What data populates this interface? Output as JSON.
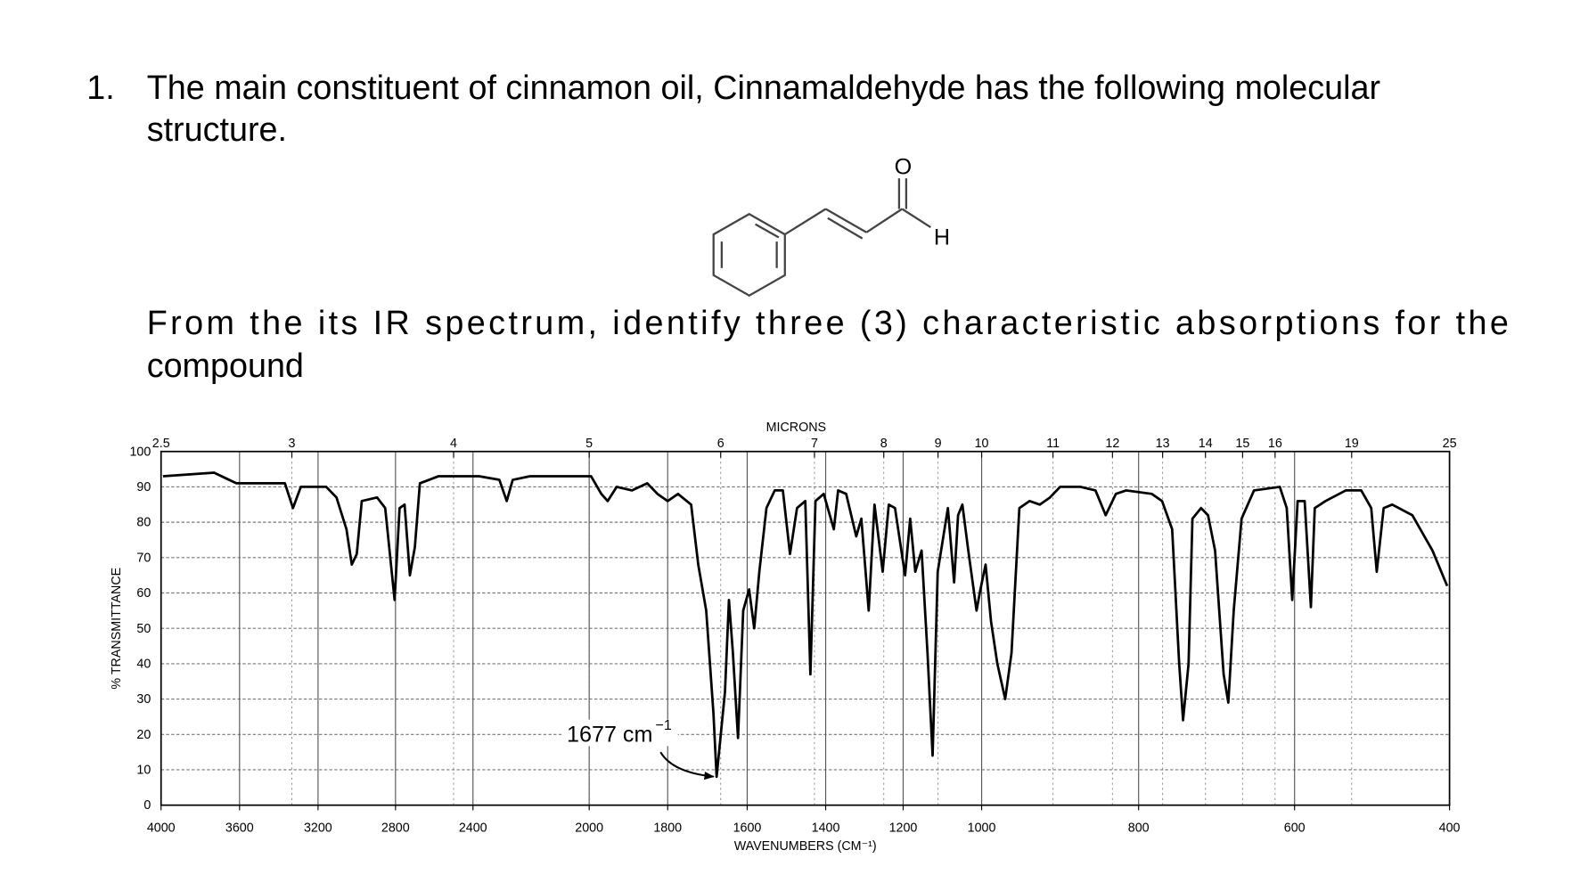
{
  "question": {
    "number": "1.",
    "text": [
      "The main constituent of cinnamon oil, Cinnamaldehyde has the following molecular",
      "structure."
    ],
    "structure": {
      "atoms": [
        "O",
        "H"
      ]
    },
    "prompt": [
      "From the its IR spectrum, identify three (3) characteristic absorptions for the",
      "compound"
    ]
  },
  "chart_data": {
    "type": "line",
    "title": "MICRONS",
    "x_label": "WAVENUMBERS (CM⁻¹)",
    "y_label": "% TRANSMITTANCE",
    "color": "#000000",
    "grid": true,
    "xlim": [
      4000,
      400
    ],
    "xticks": [
      4000,
      3600,
      3200,
      2800,
      2400,
      2000,
      1800,
      1600,
      1400,
      1200,
      1000,
      800,
      600,
      400
    ],
    "micron_ticks": [
      2.5,
      3,
      4,
      5,
      6,
      7,
      8,
      9,
      10,
      11,
      12,
      13,
      14,
      15,
      16,
      19,
      25
    ],
    "ylim": [
      0,
      100
    ],
    "yticks": [
      0,
      10,
      20,
      30,
      40,
      50,
      60,
      70,
      80,
      90,
      100
    ],
    "annotation": {
      "text": "1677 cm",
      "superscript": "−1"
    },
    "x": [
      3990,
      3730,
      3616,
      3369,
      3328,
      3288,
      3158,
      3105,
      3053,
      3026,
      3000,
      2974,
      2895,
      2853,
      2805,
      2779,
      2753,
      2726,
      2700,
      2674,
      2579,
      2379,
      2309,
      2284,
      2263,
      2204,
      1995,
      1969,
      1953,
      1930,
      1891,
      1852,
      1826,
      1800,
      1774,
      1741,
      1723,
      1703,
      1685,
      1677,
      1656,
      1646,
      1636,
      1623,
      1610,
      1595,
      1582,
      1569,
      1551,
      1530,
      1509,
      1491,
      1473,
      1452,
      1439,
      1426,
      1405,
      1379,
      1368,
      1347,
      1321,
      1308,
      1289,
      1274,
      1253,
      1237,
      1221,
      1195,
      1182,
      1169,
      1153,
      1138,
      1125,
      1112,
      1099,
      1086,
      1070,
      1060,
      1049,
      1034,
      1013,
      1003,
      995,
      988,
      980,
      970,
      962,
      952,
      939,
      926,
      913,
      900,
      874,
      855,
      842,
      829,
      816,
      783,
      770,
      757,
      748,
      743,
      736,
      731,
      720,
      711,
      702,
      691,
      685,
      678,
      668,
      652,
      619,
      610,
      603,
      596,
      587,
      579,
      574,
      560,
      534,
      514,
      501,
      494,
      485,
      474,
      448,
      422,
      403
    ],
    "values": [
      93,
      94,
      91,
      91,
      84,
      90,
      90,
      87,
      78,
      68,
      71,
      86,
      87,
      84,
      58,
      84,
      85,
      65,
      73,
      91,
      93,
      93,
      92,
      86,
      92,
      93,
      93,
      88,
      86,
      90,
      89,
      91,
      88,
      86,
      88,
      85,
      68,
      55,
      26,
      8,
      32,
      58,
      43,
      19,
      55,
      61,
      50,
      66,
      84,
      89,
      89,
      71,
      84,
      86,
      37,
      86,
      88,
      78,
      89,
      88,
      76,
      81,
      55,
      85,
      66,
      85,
      84,
      65,
      81,
      66,
      72,
      43,
      14,
      66,
      75,
      84,
      63,
      82,
      85,
      72,
      55,
      61,
      68,
      52,
      40,
      30,
      43,
      84,
      86,
      85,
      87,
      90,
      90,
      89,
      82,
      88,
      89,
      88,
      86,
      78,
      40,
      24,
      40,
      81,
      84,
      82,
      72,
      37,
      29,
      55,
      81,
      89,
      90,
      84,
      58,
      86,
      86,
      56,
      84,
      86,
      89,
      89,
      84,
      66,
      84,
      85,
      82,
      72,
      62
    ]
  }
}
